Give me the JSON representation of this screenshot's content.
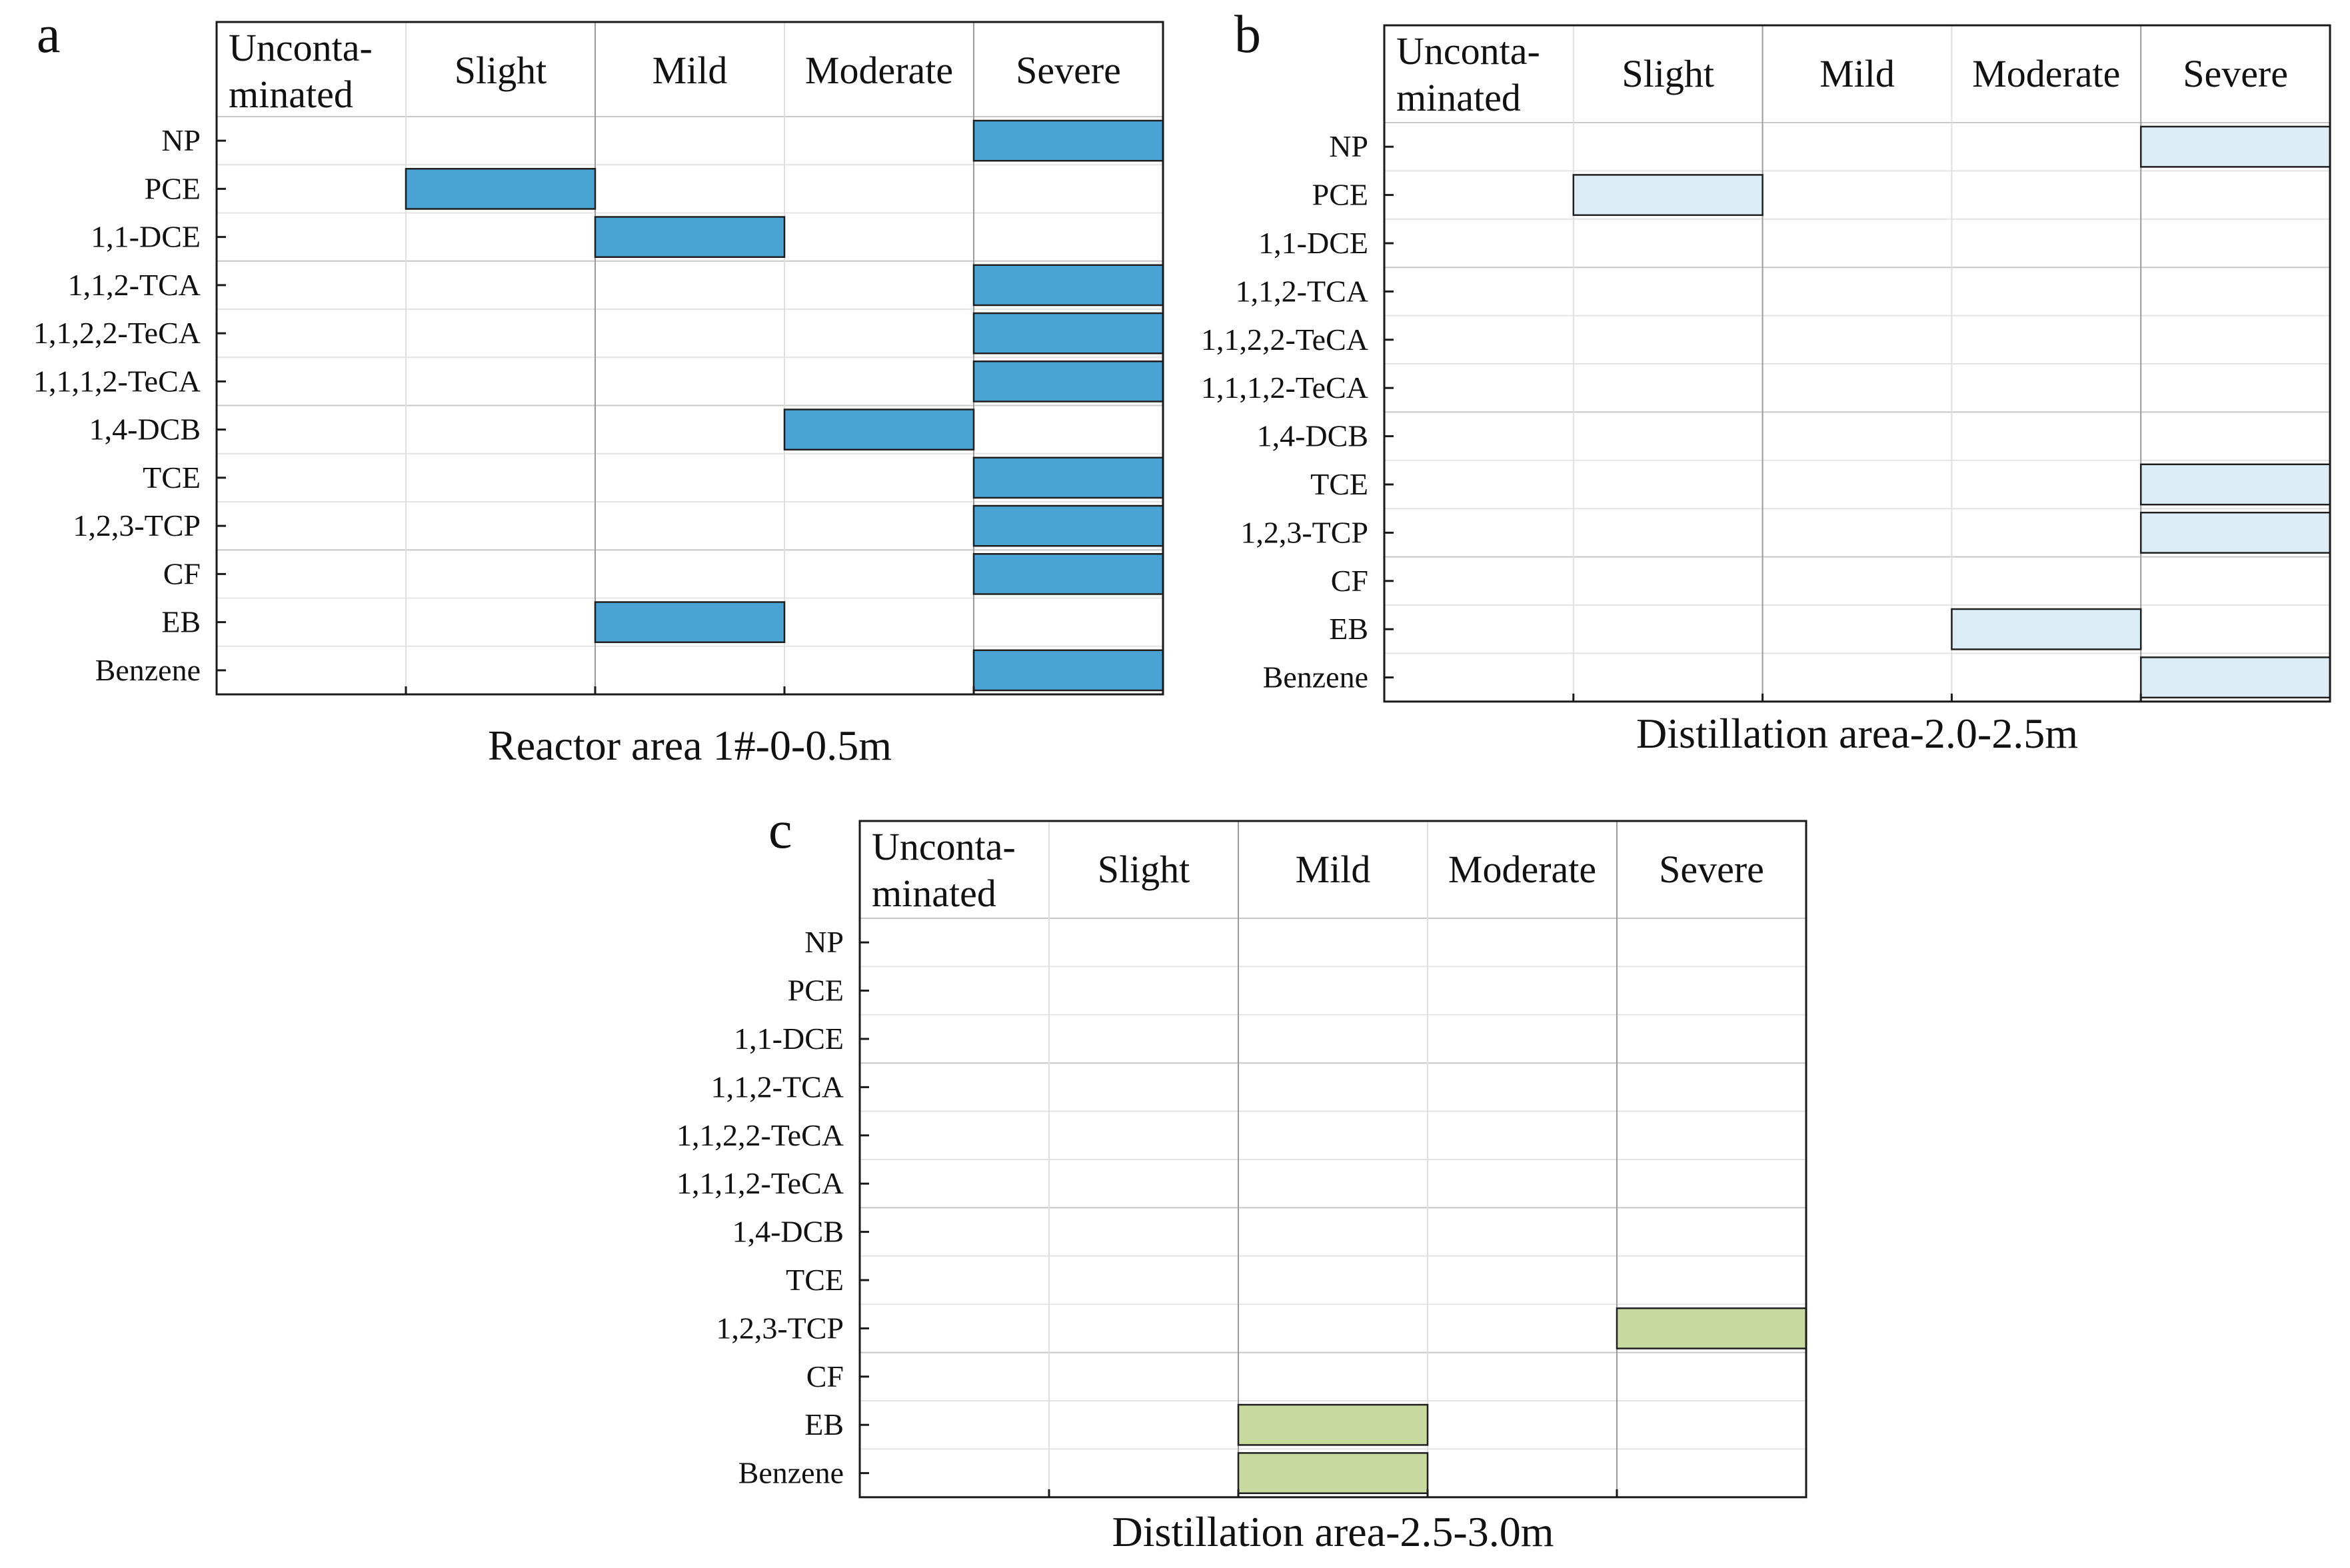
{
  "figure": {
    "category_order": [
      "Uncontaminated",
      "Slight",
      "Mild",
      "Moderate",
      "Severe"
    ]
  },
  "chart_data": [
    {
      "type": "categorical-matrix",
      "panel": "a",
      "title": "Reactor area 1#-0-0.5m",
      "columns": [
        [
          "Unconta-",
          "minated"
        ],
        [
          "Slight"
        ],
        [
          "Mild"
        ],
        [
          "Moderate"
        ],
        [
          "Severe"
        ]
      ],
      "rows": [
        "NP",
        "PCE",
        "1,1-DCE",
        "1,1,2-TCA",
        "1,1,2,2-TeCA",
        "1,1,1,2-TeCA",
        "1,4-DCB",
        "TCE",
        "1,2,3-TCP",
        "CF",
        "EB",
        "Benzene"
      ],
      "levels": [
        "Severe",
        "Slight",
        "Mild",
        "Severe",
        "Severe",
        "Severe",
        "Moderate",
        "Severe",
        "Severe",
        "Severe",
        "Mild",
        "Severe"
      ],
      "bar_color": "#4ba3d3"
    },
    {
      "type": "categorical-matrix",
      "panel": "b",
      "title": "Distillation area-2.0-2.5m",
      "columns": [
        [
          "Unconta-",
          "minated"
        ],
        [
          "Slight"
        ],
        [
          "Mild"
        ],
        [
          "Moderate"
        ],
        [
          "Severe"
        ]
      ],
      "rows": [
        "NP",
        "PCE",
        "1,1-DCE",
        "1,1,2-TCA",
        "1,1,2,2-TeCA",
        "1,1,1,2-TeCA",
        "1,4-DCB",
        "TCE",
        "1,2,3-TCP",
        "CF",
        "EB",
        "Benzene"
      ],
      "levels": [
        "Severe",
        "Slight",
        null,
        null,
        null,
        null,
        null,
        "Severe",
        "Severe",
        null,
        "Moderate",
        "Severe"
      ],
      "bar_color": "#dcecf5"
    },
    {
      "type": "categorical-matrix",
      "panel": "c",
      "title": "Distillation area-2.5-3.0m",
      "columns": [
        [
          "Unconta-",
          "minated"
        ],
        [
          "Slight"
        ],
        [
          "Mild"
        ],
        [
          "Moderate"
        ],
        [
          "Severe"
        ]
      ],
      "rows": [
        "NP",
        "PCE",
        "1,1-DCE",
        "1,1,2-TCA",
        "1,1,2,2-TeCA",
        "1,1,1,2-TeCA",
        "1,4-DCB",
        "TCE",
        "1,2,3-TCP",
        "CF",
        "EB",
        "Benzene"
      ],
      "levels": [
        null,
        null,
        null,
        null,
        null,
        null,
        null,
        null,
        "Severe",
        null,
        "Mild",
        "Mild"
      ],
      "bar_color": "#c8d9a0"
    }
  ]
}
